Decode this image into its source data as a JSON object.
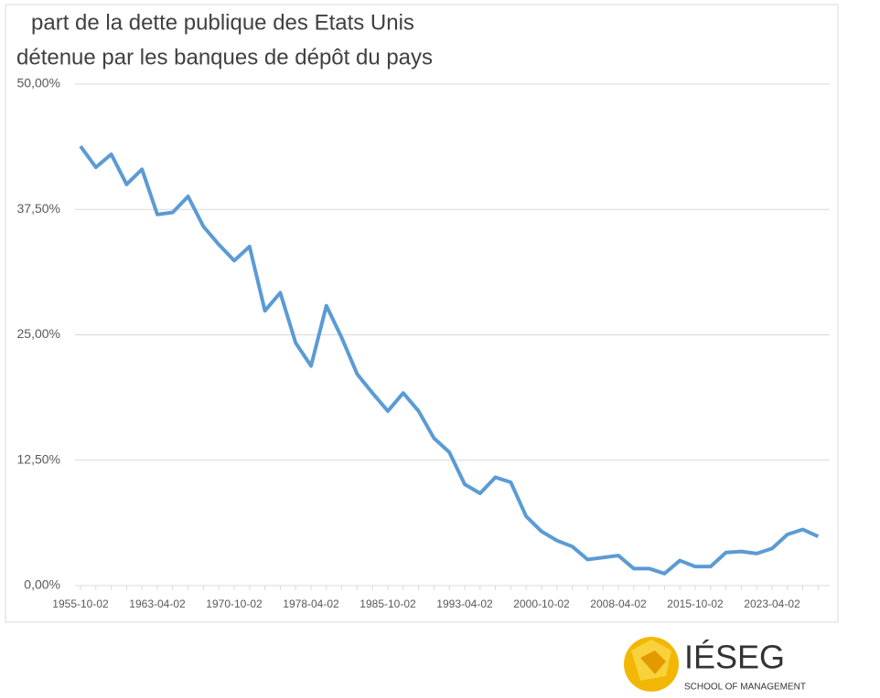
{
  "chart_data": {
    "type": "line",
    "title": [
      "part de la dette publique des Etats Unis",
      "détenue par les banques de dépôt du pays"
    ],
    "categories": [
      "1955-10-02",
      null,
      null,
      null,
      null,
      "1963-04-02",
      null,
      null,
      null,
      null,
      "1970-10-02",
      null,
      null,
      null,
      null,
      "1978-04-02",
      null,
      null,
      null,
      null,
      "1985-10-02",
      null,
      null,
      null,
      null,
      "1993-04-02",
      null,
      null,
      null,
      null,
      "2000-10-02",
      null,
      null,
      null,
      null,
      "2008-04-02",
      null,
      null,
      null,
      null,
      "2015-10-02",
      null,
      null,
      null,
      null,
      "2023-04-02",
      null,
      null,
      null
    ],
    "series": [
      {
        "name": "part de la dette publique",
        "color": "#5b9bd5",
        "values": [
          43.8,
          41.7,
          43.0,
          40.0,
          41.5,
          37.0,
          37.2,
          38.8,
          35.8,
          34.0,
          32.4,
          33.8,
          27.4,
          29.2,
          24.2,
          21.9,
          27.9,
          24.7,
          21.1,
          19.2,
          17.4,
          19.2,
          17.4,
          14.7,
          13.3,
          10.1,
          9.2,
          10.8,
          10.3,
          6.9,
          5.4,
          4.5,
          3.9,
          2.6,
          2.8,
          3.0,
          1.7,
          1.7,
          1.2,
          2.5,
          1.9,
          1.9,
          3.3,
          3.4,
          3.2,
          3.7,
          5.1,
          5.6,
          4.9
        ]
      }
    ],
    "ylim": [
      0,
      50
    ],
    "yticks": [
      {
        "value": 0,
        "label": "0,00%"
      },
      {
        "value": 12.5,
        "label": "12,50%"
      },
      {
        "value": 25,
        "label": "25,00%"
      },
      {
        "value": 37.5,
        "label": "37,50%"
      },
      {
        "value": 50,
        "label": "50,00%"
      }
    ],
    "grid": true
  },
  "logo": {
    "name": "IÉSEG",
    "tagline": "SCHOOL OF MANAGEMENT"
  }
}
